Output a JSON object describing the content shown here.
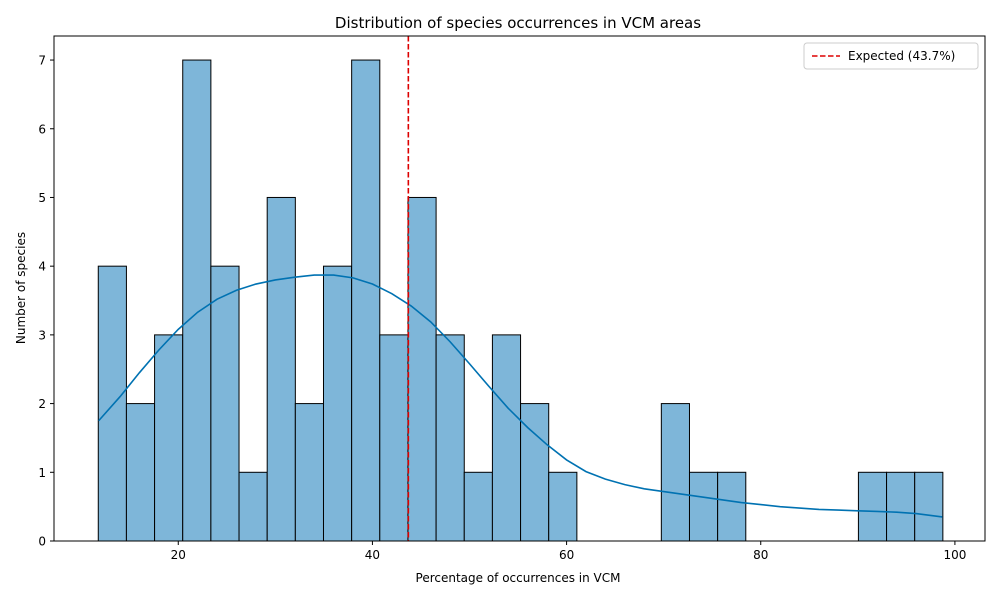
{
  "chart_data": {
    "type": "histogram",
    "title": "Distribution of species occurrences in VCM areas",
    "xlabel": "Percentage of occurrences in VCM",
    "ylabel": "Number of species",
    "xlim": [
      7.2,
      103.1
    ],
    "ylim": [
      0,
      7.35
    ],
    "x_ticks": [
      20,
      40,
      60,
      80,
      100
    ],
    "y_ticks": [
      0,
      1,
      2,
      3,
      4,
      5,
      6,
      7
    ],
    "grid": false,
    "legend_position": "top-right",
    "bin_edges": [
      11.76,
      14.66,
      17.56,
      20.46,
      23.36,
      26.26,
      29.16,
      32.06,
      34.96,
      37.86,
      40.76,
      43.66,
      46.56,
      49.46,
      52.36,
      55.26,
      58.16,
      61.06,
      63.96,
      66.86,
      69.76,
      72.66,
      75.56,
      78.46,
      81.36,
      84.26,
      87.16,
      90.06,
      92.96,
      95.86,
      98.76
    ],
    "counts": [
      4,
      2,
      3,
      7,
      4,
      1,
      5,
      2,
      4,
      7,
      3,
      5,
      3,
      1,
      3,
      2,
      1,
      0,
      0,
      0,
      2,
      1,
      1,
      0,
      0,
      0,
      0,
      1,
      1,
      1
    ],
    "kde": {
      "x": [
        11.8,
        14,
        16,
        18,
        20,
        22,
        24,
        26,
        28,
        30,
        32,
        34,
        36,
        38,
        40,
        42,
        44,
        46,
        48,
        50,
        52,
        54,
        56,
        58,
        60,
        62,
        64,
        66,
        68,
        70,
        72,
        74,
        76,
        78,
        80,
        82,
        84,
        86,
        88,
        90,
        92,
        94,
        96,
        98.7
      ],
      "y": [
        1.75,
        2.1,
        2.45,
        2.78,
        3.08,
        3.33,
        3.52,
        3.65,
        3.74,
        3.8,
        3.84,
        3.87,
        3.87,
        3.83,
        3.74,
        3.6,
        3.42,
        3.19,
        2.9,
        2.58,
        2.25,
        1.93,
        1.65,
        1.4,
        1.18,
        1.01,
        0.9,
        0.82,
        0.76,
        0.72,
        0.68,
        0.64,
        0.6,
        0.56,
        0.53,
        0.5,
        0.48,
        0.46,
        0.45,
        0.44,
        0.43,
        0.42,
        0.4,
        0.35
      ]
    },
    "expected_line": {
      "x": 43.7,
      "label": "Expected (43.7%)"
    },
    "colors": {
      "bar_fill": "#7eb6d9",
      "bar_edge": "#000000",
      "kde": "#0072b2",
      "expected": "#dd0000"
    }
  }
}
